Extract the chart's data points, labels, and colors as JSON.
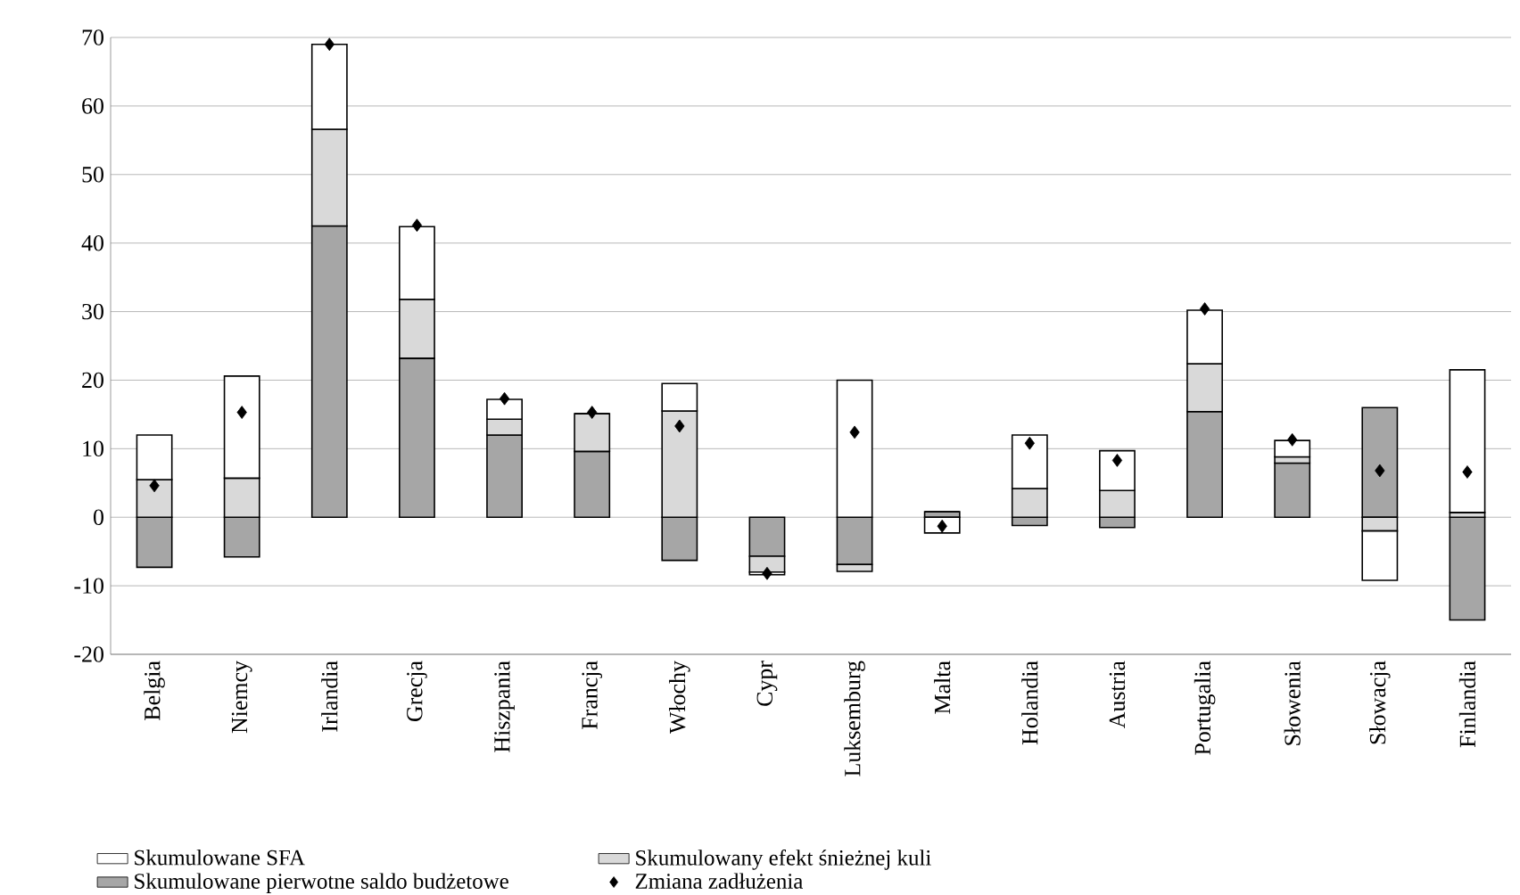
{
  "chart_data": {
    "type": "bar",
    "stacked": true,
    "categories": [
      "Belgia",
      "Niemcy",
      "Irlandia",
      "Grecja",
      "Hiszpania",
      "Francja",
      "Włochy",
      "Cypr",
      "Luksemburg",
      "Malta",
      "Holandia",
      "Austria",
      "Portugalia",
      "Słowenia",
      "Słowacja",
      "Finlandia"
    ],
    "series": [
      {
        "name": "Skumulowane pierwotne saldo budżetowe",
        "color": "#a6a6a6",
        "values": [
          -7.3,
          -5.8,
          42.5,
          23.2,
          12.0,
          9.6,
          -6.3,
          -5.7,
          -6.9,
          0.8,
          -1.2,
          -1.5,
          15.4,
          7.9,
          16.0,
          -15.0
        ]
      },
      {
        "name": "Skumulowany efekt śnieżnej kuli",
        "color": "#d9d9d9",
        "values": [
          5.5,
          5.7,
          14.1,
          8.6,
          2.3,
          5.5,
          15.5,
          -2.3,
          -1.0,
          0,
          4.2,
          3.9,
          7.0,
          0.9,
          -2.0,
          0.7
        ]
      },
      {
        "name": "Skumulowane SFA",
        "color": "#ffffff",
        "values": [
          6.5,
          14.9,
          12.4,
          10.6,
          2.9,
          0,
          4.0,
          -0.4,
          20.0,
          -2.3,
          7.8,
          5.8,
          7.8,
          2.4,
          -7.2,
          20.8
        ]
      },
      {
        "name": "Zmiana zadłużenia",
        "type": "scatter",
        "marker": "diamond",
        "color": "#000000",
        "values": [
          4.6,
          15.3,
          69.0,
          42.6,
          17.3,
          15.3,
          13.3,
          -8.2,
          12.4,
          -1.3,
          10.8,
          8.3,
          30.4,
          11.3,
          6.8,
          6.6
        ]
      }
    ],
    "ylim": [
      -20,
      70
    ],
    "yticks": [
      -20,
      -10,
      0,
      10,
      20,
      30,
      40,
      50,
      60,
      70
    ],
    "grid": "y",
    "legend": "bottom"
  }
}
